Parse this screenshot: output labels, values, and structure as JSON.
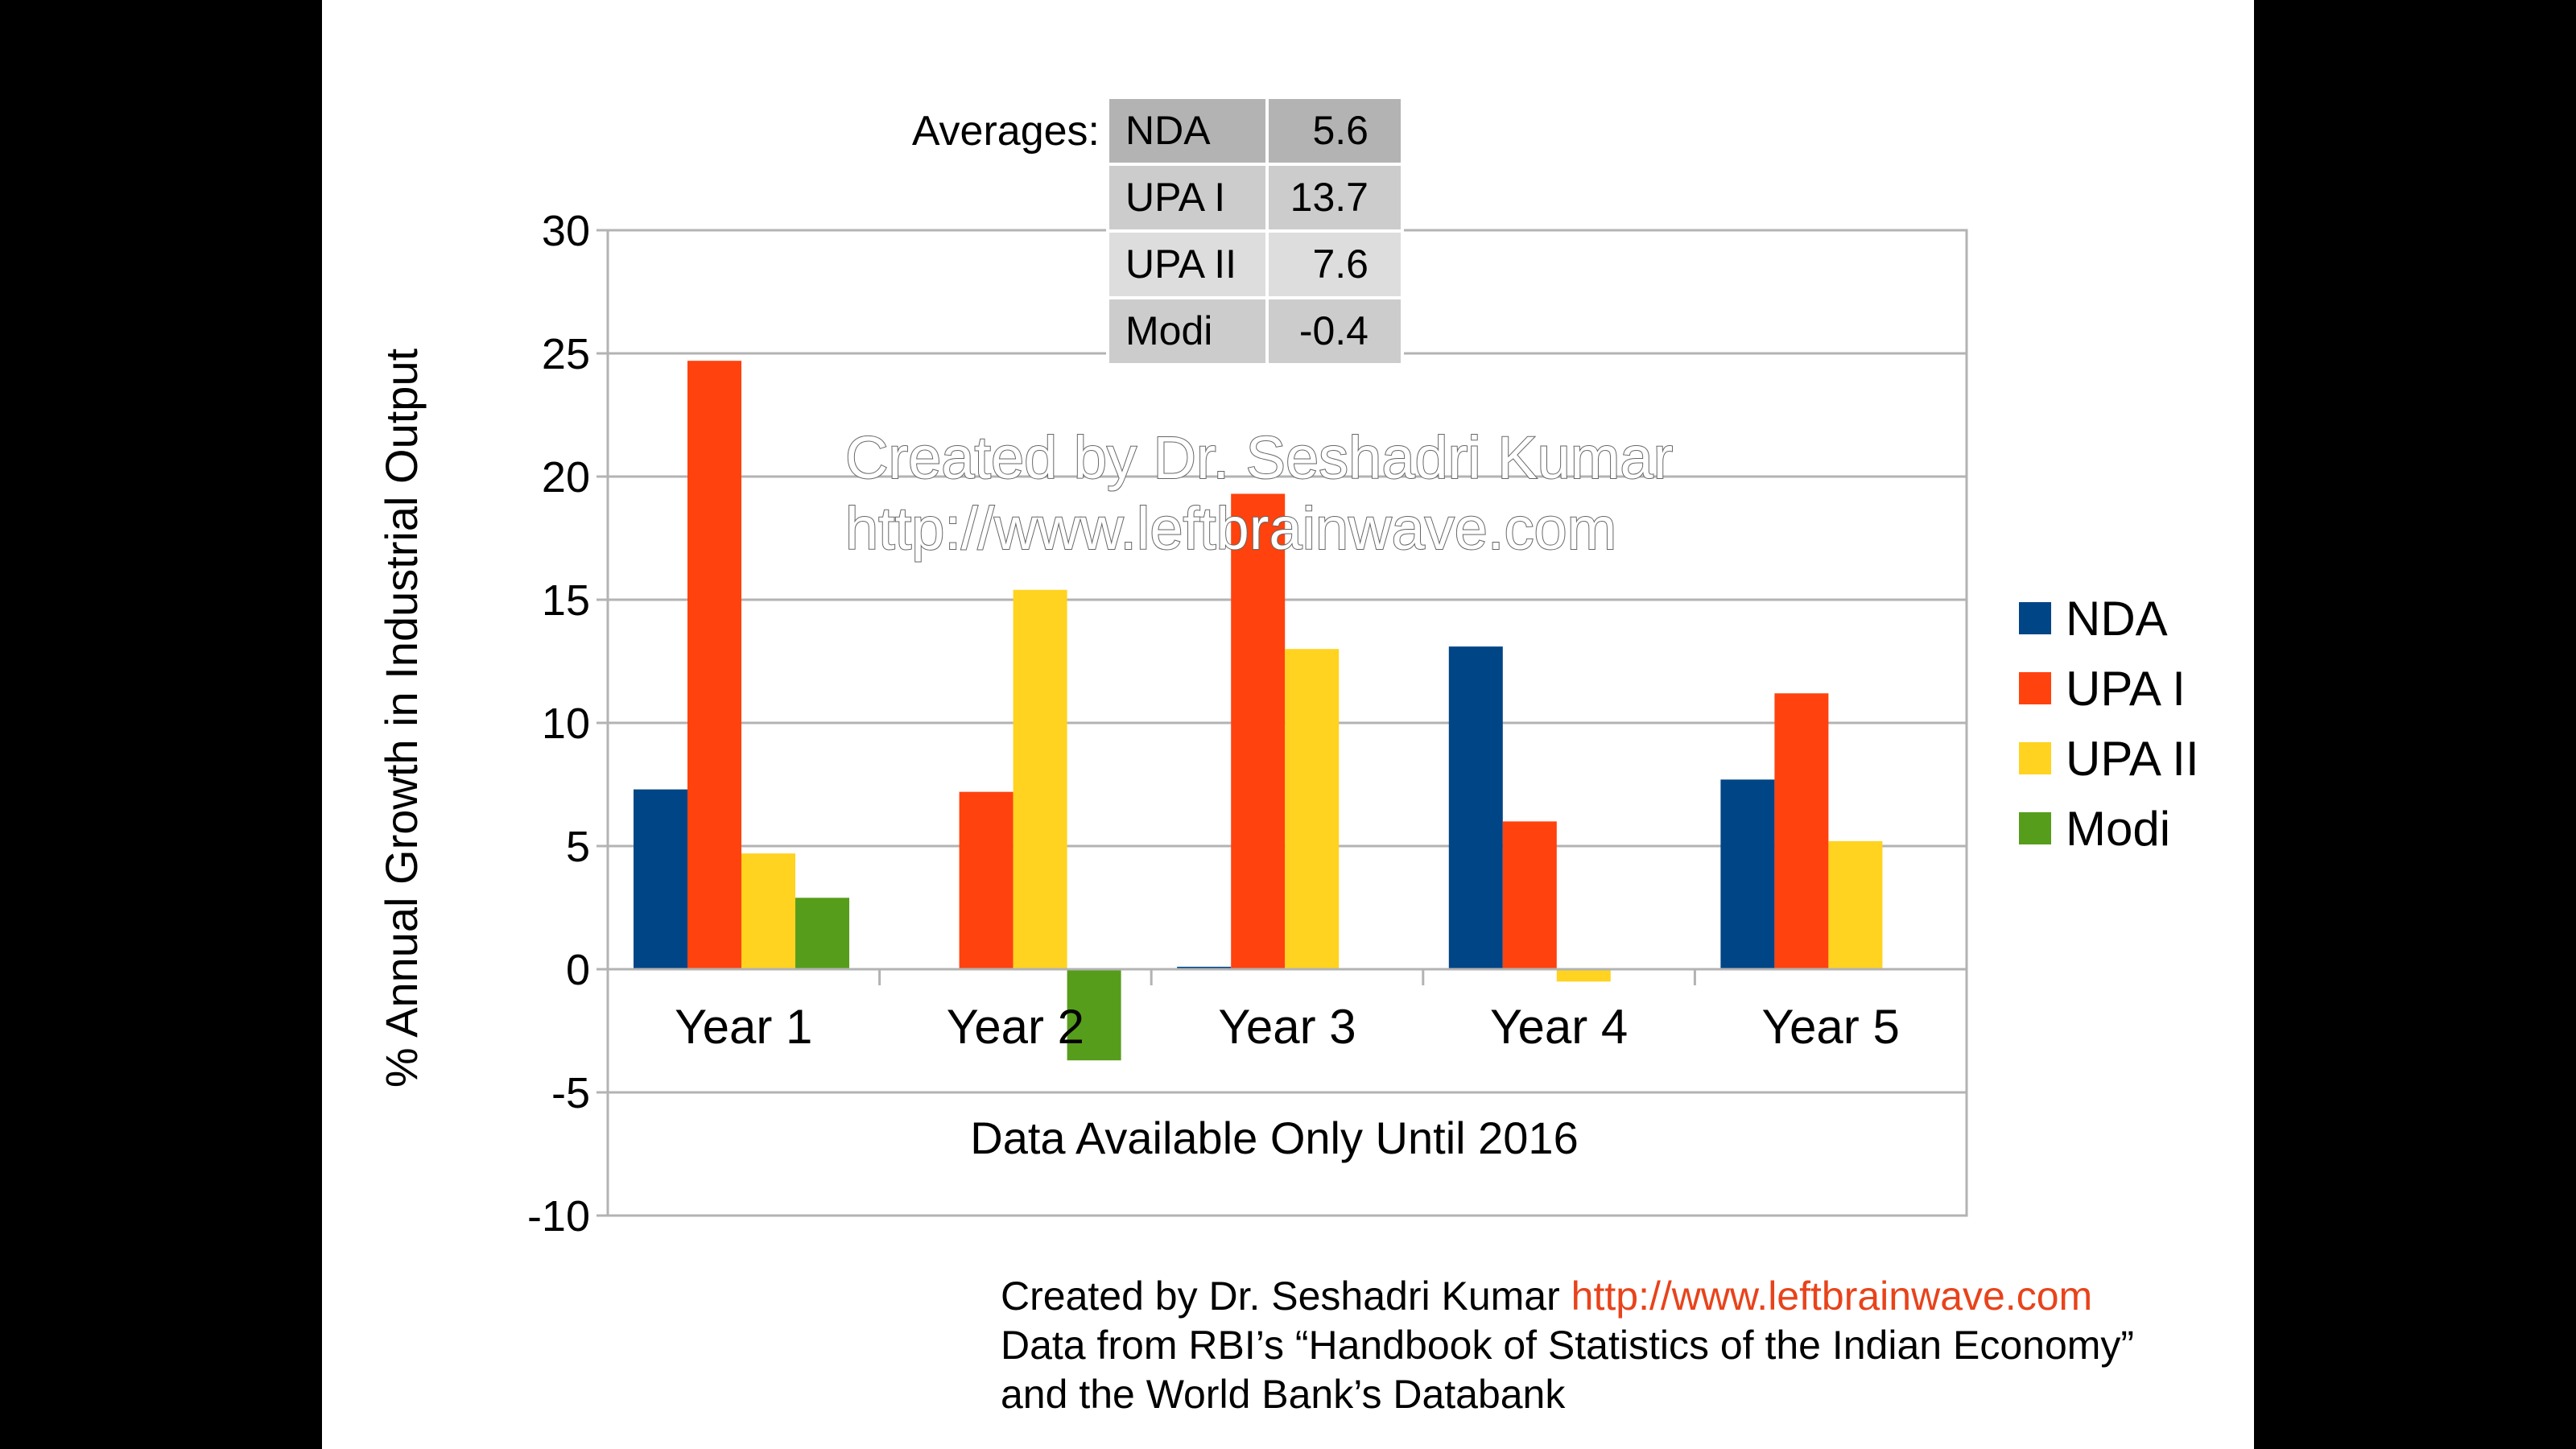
{
  "chart_data": {
    "type": "bar",
    "categories": [
      "Year 1",
      "Year 2",
      "Year 3",
      "Year 4",
      "Year 5"
    ],
    "series": [
      {
        "name": "NDA",
        "color": "#004586",
        "values": [
          7.3,
          null,
          0.1,
          13.1,
          7.7
        ]
      },
      {
        "name": "UPA I",
        "color": "#ff420e",
        "values": [
          24.7,
          7.2,
          19.3,
          6.0,
          11.2
        ]
      },
      {
        "name": "UPA II",
        "color": "#ffd320",
        "values": [
          4.7,
          15.4,
          13.0,
          -0.5,
          5.2
        ]
      },
      {
        "name": "Modi",
        "color": "#579d1c",
        "values": [
          2.9,
          -3.7,
          null,
          null,
          null
        ]
      }
    ],
    "ylabel": "% Annual Growth in Industrial Output",
    "xlabel": "",
    "ylim": [
      -10,
      30
    ],
    "yticks": [
      30,
      25,
      20,
      15,
      10,
      5,
      0,
      -5,
      -10
    ],
    "grid": true,
    "legend": "right",
    "annotation": "Data Available Only Until 2016"
  },
  "averages": {
    "label": "Averages:",
    "rows": [
      {
        "name": "NDA",
        "value": "5.6"
      },
      {
        "name": "UPA I",
        "value": "13.7"
      },
      {
        "name": "UPA II",
        "value": "7.6"
      },
      {
        "name": "Modi",
        "value": "-0.4"
      }
    ]
  },
  "watermark": {
    "line1": "Created by Dr. Seshadri Kumar",
    "line2": "http://www.leftbrainwave.com"
  },
  "footer": {
    "line1_text": "Created by Dr. Seshadri Kumar",
    "line1_link": "http://www.leftbrainwave.com",
    "line2": "Data from RBI’s “Handbook of Statistics of the Indian Economy”",
    "line3": "and the World Bank’s Databank"
  }
}
